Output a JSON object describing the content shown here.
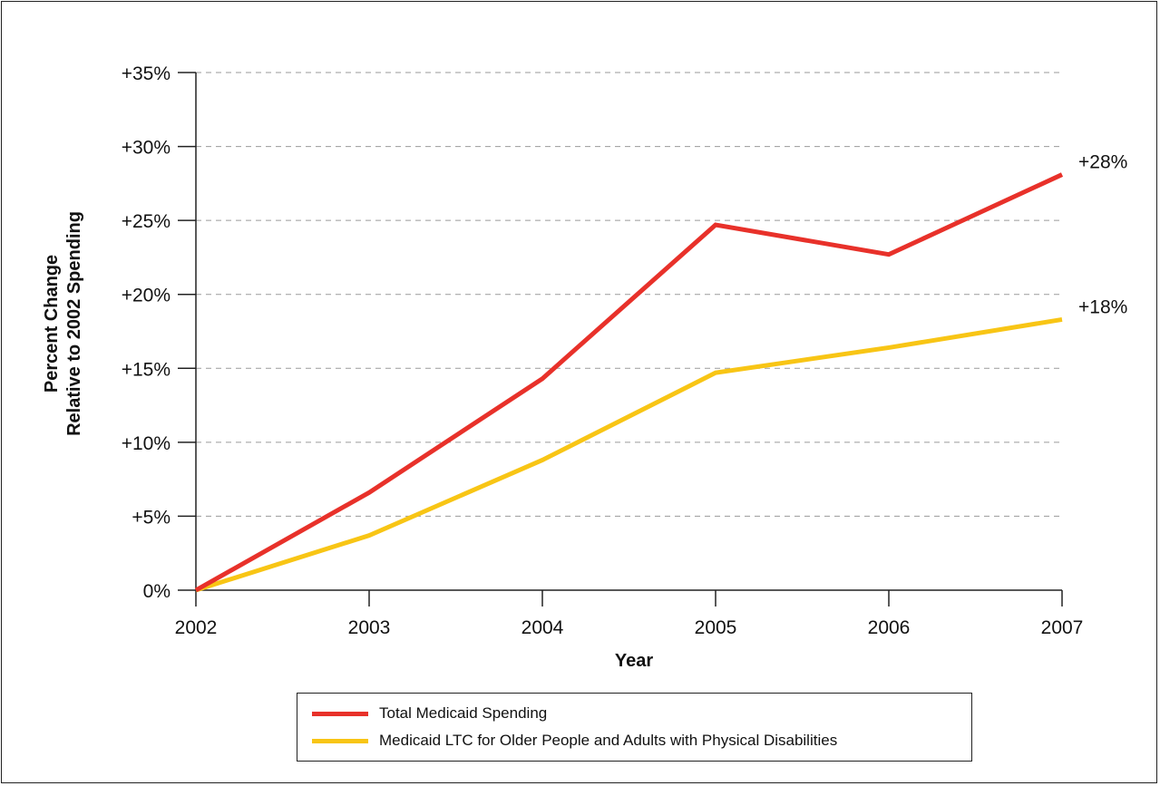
{
  "chart_data": {
    "type": "line",
    "x": [
      "2002",
      "2003",
      "2004",
      "2005",
      "2006",
      "2007"
    ],
    "series": [
      {
        "name": "Total Medicaid Spending",
        "color": "#e8312a",
        "values": [
          0,
          6.6,
          14.3,
          24.7,
          22.7,
          28.1
        ],
        "end_label": "+28%"
      },
      {
        "name": "Medicaid LTC for Older People and Adults with Physical Disabilities",
        "color": "#f8c515",
        "values": [
          0,
          3.7,
          8.8,
          14.7,
          16.4,
          18.3
        ],
        "end_label": "+18%"
      }
    ],
    "xlabel": "Year",
    "ylabel_lines": [
      "Percent Change",
      "Relative to 2002 Spending"
    ],
    "ylim": [
      0,
      35
    ],
    "yticks": [
      0,
      5,
      10,
      15,
      20,
      25,
      30,
      35
    ],
    "ytick_labels": [
      "0%",
      "+5%",
      "+10%",
      "+15%",
      "+20%",
      "+25%",
      "+30%",
      "+35%"
    ],
    "grid": "horizontal dashed",
    "legend_position": "bottom"
  }
}
